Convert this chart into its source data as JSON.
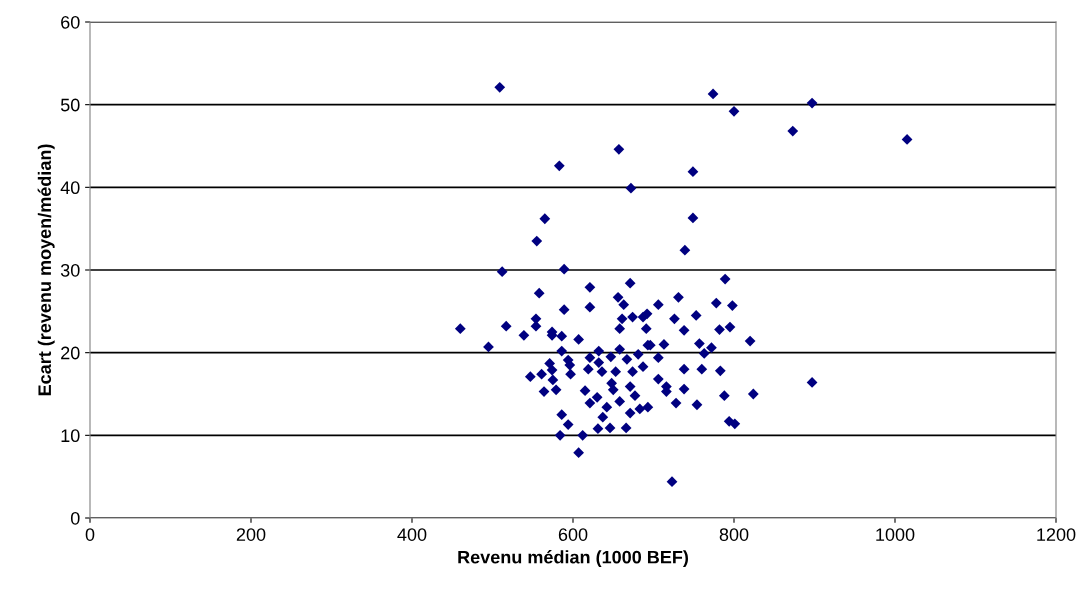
{
  "chart_data": {
    "type": "scatter",
    "xlabel": "Revenu médian (1000 BEF)",
    "ylabel": "Ecart (revenu moyen/médian)",
    "xlim": [
      0,
      1200
    ],
    "xticks": [
      0,
      200,
      400,
      600,
      800,
      1000,
      1200
    ],
    "ylim": [
      0,
      60
    ],
    "yticks": [
      0,
      10,
      20,
      30,
      40,
      50,
      60
    ],
    "grid": "y",
    "marker": "diamond",
    "legend": false,
    "series": [
      {
        "color": "#000080",
        "x": [
          509,
          774,
          800,
          897,
          873,
          1015,
          657,
          583,
          749,
          672,
          565,
          555,
          749,
          739,
          512,
          589,
          671,
          558,
          621,
          656,
          663,
          589,
          621,
          674,
          687,
          661,
          554,
          460,
          517,
          554,
          539,
          574,
          586,
          574,
          658,
          691,
          607,
          495,
          586,
          632,
          658,
          647,
          681,
          693,
          571,
          594,
          621,
          632,
          667,
          596,
          574,
          619,
          636,
          653,
          674,
          687,
          561,
          597,
          547,
          575,
          648,
          671,
          579,
          564,
          615,
          650,
          677,
          630,
          621,
          642,
          658,
          683,
          671,
          637,
          586,
          594,
          631,
          646,
          666,
          584,
          612,
          607,
          789,
          731,
          706,
          778,
          798,
          692,
          726,
          753,
          738,
          782,
          795,
          820,
          696,
          713,
          757,
          772,
          763,
          706,
          738,
          760,
          783,
          706,
          716,
          716,
          738,
          897,
          788,
          824,
          728,
          754,
          693,
          794,
          801,
          723
        ],
        "values": [
          52.1,
          51.3,
          49.2,
          50.2,
          46.8,
          45.8,
          44.6,
          42.6,
          41.9,
          39.9,
          36.2,
          33.5,
          36.3,
          32.4,
          29.8,
          30.1,
          28.4,
          27.2,
          27.9,
          26.7,
          25.8,
          25.2,
          25.5,
          24.3,
          24.3,
          24.1,
          24.1,
          22.9,
          23.2,
          23.2,
          22.1,
          22.5,
          22.0,
          22.1,
          22.9,
          22.9,
          21.6,
          20.7,
          20.2,
          20.2,
          20.4,
          19.5,
          19.8,
          20.9,
          18.7,
          19.1,
          19.4,
          18.8,
          19.2,
          18.5,
          17.9,
          18.0,
          17.7,
          17.7,
          17.7,
          18.3,
          17.4,
          17.4,
          17.1,
          16.7,
          16.3,
          15.9,
          15.5,
          15.3,
          15.4,
          15.5,
          14.8,
          14.6,
          13.9,
          13.4,
          14.1,
          13.2,
          12.7,
          12.2,
          12.5,
          11.3,
          10.8,
          10.9,
          10.9,
          10.0,
          10.0,
          7.9,
          28.9,
          26.7,
          25.8,
          26.0,
          25.7,
          24.7,
          24.1,
          24.5,
          22.7,
          22.8,
          23.1,
          21.4,
          20.9,
          21.0,
          21.1,
          20.6,
          19.9,
          19.4,
          18.0,
          18.0,
          17.8,
          16.8,
          15.9,
          15.3,
          15.6,
          16.4,
          14.8,
          15.0,
          13.9,
          13.7,
          13.4,
          11.7,
          11.4,
          4.4
        ]
      }
    ]
  }
}
